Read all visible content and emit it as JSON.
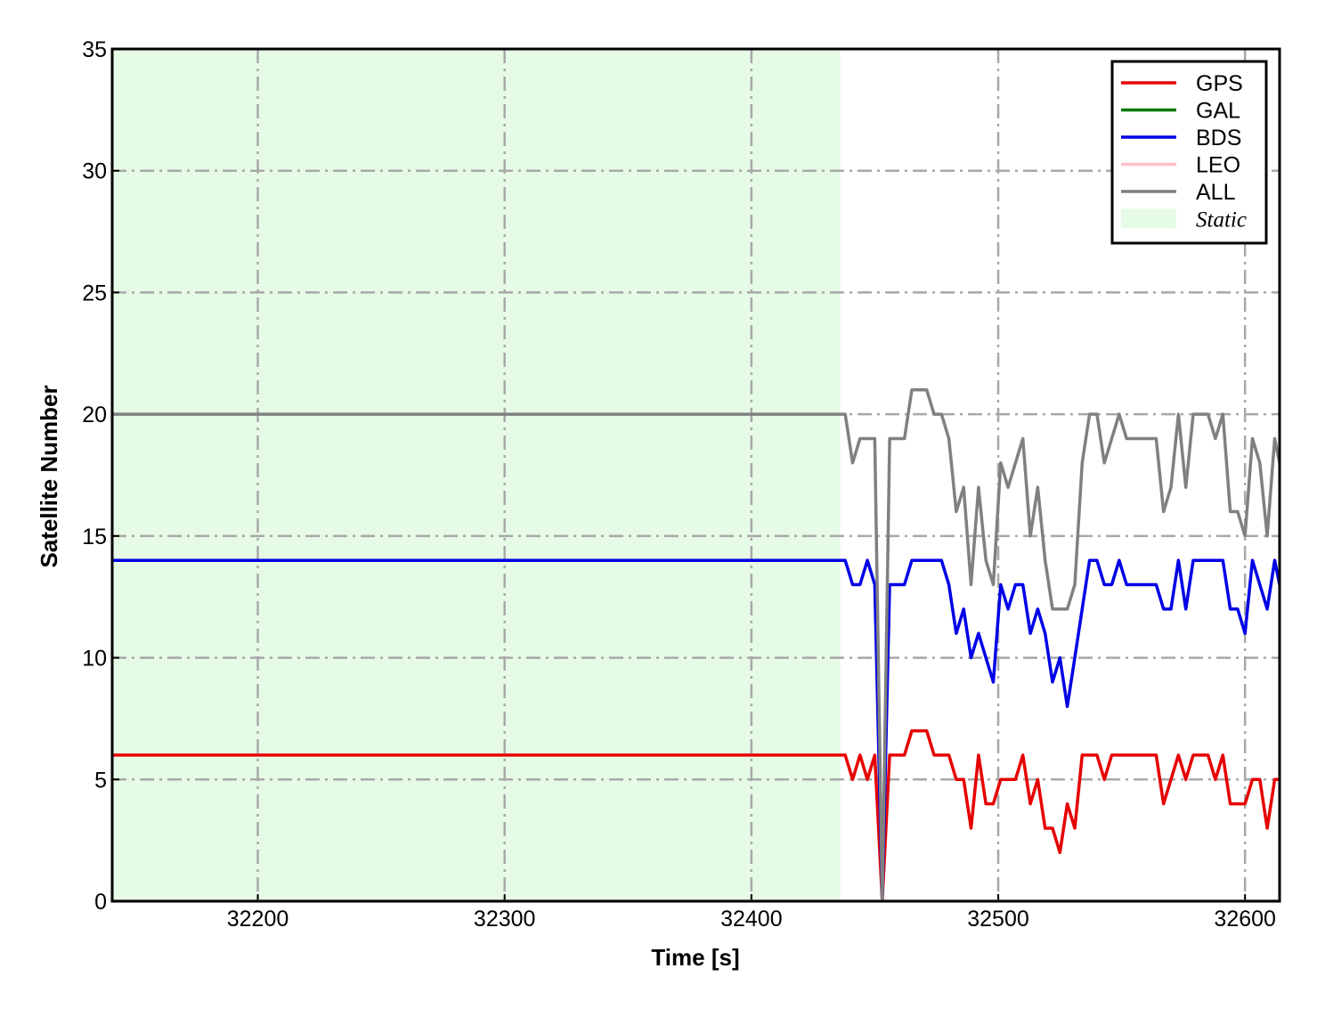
{
  "chart_data": {
    "type": "line",
    "x_label": "Time [s]",
    "y_label": "Satellite Number",
    "xlim": [
      32141,
      32614
    ],
    "ylim": [
      0,
      35
    ],
    "xticks": [
      32200,
      32300,
      32400,
      32500,
      32600
    ],
    "yticks": [
      0,
      5,
      10,
      15,
      20,
      25,
      30,
      35
    ],
    "grid": true,
    "legend_position": "upper right",
    "span": {
      "label": "Static",
      "range": [
        32141,
        32436
      ],
      "color": "#e6fbe6"
    },
    "x": [
      32141,
      32438,
      32441,
      32444,
      32447,
      32450,
      32453,
      32456,
      32459,
      32462,
      32465,
      32468,
      32471,
      32474,
      32477,
      32480,
      32483,
      32486,
      32489,
      32492,
      32495,
      32498,
      32501,
      32504,
      32507,
      32510,
      32513,
      32516,
      32519,
      32522,
      32525,
      32528,
      32531,
      32534,
      32537,
      32540,
      32543,
      32546,
      32549,
      32552,
      32555,
      32558,
      32561,
      32564,
      32567,
      32570,
      32573,
      32576,
      32579,
      32582,
      32585,
      32588,
      32591,
      32594,
      32597,
      32600,
      32603,
      32606,
      32609,
      32612,
      32614
    ],
    "series": [
      {
        "name": "GPS",
        "color": "#e60000",
        "values": [
          6,
          6,
          5,
          6,
          5,
          6,
          0,
          6,
          6,
          6,
          7,
          7,
          7,
          6,
          6,
          6,
          5,
          5,
          3,
          6,
          4,
          4,
          5,
          5,
          5,
          6,
          4,
          5,
          3,
          3,
          2,
          4,
          3,
          6,
          6,
          6,
          5,
          6,
          6,
          6,
          6,
          6,
          6,
          6,
          4,
          5,
          6,
          5,
          6,
          6,
          6,
          5,
          6,
          4,
          4,
          4,
          5,
          5,
          3,
          5,
          5
        ]
      },
      {
        "name": "GAL",
        "color": "#007a00",
        "values": [
          0,
          0,
          0,
          0,
          0,
          0,
          0,
          0,
          0,
          0,
          0,
          0,
          0,
          0,
          0,
          0,
          0,
          0,
          0,
          0,
          0,
          0,
          0,
          0,
          0,
          0,
          0,
          0,
          0,
          0,
          0,
          0,
          0,
          0,
          0,
          0,
          0,
          0,
          0,
          0,
          0,
          0,
          0,
          0,
          0,
          0,
          0,
          0,
          0,
          0,
          0,
          0,
          0,
          0,
          0,
          0,
          0,
          0,
          0,
          0,
          0
        ]
      },
      {
        "name": "BDS",
        "color": "#0000e6",
        "values": [
          14,
          14,
          13,
          13,
          14,
          13,
          0,
          13,
          13,
          13,
          14,
          14,
          14,
          14,
          14,
          13,
          11,
          12,
          10,
          11,
          10,
          9,
          13,
          12,
          13,
          13,
          11,
          12,
          11,
          9,
          10,
          8,
          10,
          12,
          14,
          14,
          13,
          13,
          14,
          13,
          13,
          13,
          13,
          13,
          12,
          12,
          14,
          12,
          14,
          14,
          14,
          14,
          14,
          12,
          12,
          11,
          14,
          13,
          12,
          14,
          13
        ]
      },
      {
        "name": "LEO",
        "color": "#ffc0cb",
        "values": [
          0,
          0,
          0,
          0,
          0,
          0,
          0,
          0,
          0,
          0,
          0,
          0,
          0,
          0,
          0,
          0,
          0,
          0,
          0,
          0,
          0,
          0,
          0,
          0,
          0,
          0,
          0,
          0,
          0,
          0,
          0,
          0,
          0,
          0,
          0,
          0,
          0,
          0,
          0,
          0,
          0,
          0,
          0,
          0,
          0,
          0,
          0,
          0,
          0,
          0,
          0,
          0,
          0,
          0,
          0,
          0,
          0,
          0,
          0,
          0,
          0
        ]
      },
      {
        "name": "ALL",
        "color": "#808080",
        "values": [
          20,
          20,
          18,
          19,
          19,
          19,
          0,
          19,
          19,
          19,
          21,
          21,
          21,
          20,
          20,
          19,
          16,
          17,
          13,
          17,
          14,
          13,
          18,
          17,
          18,
          19,
          15,
          17,
          14,
          12,
          12,
          12,
          13,
          18,
          20,
          20,
          18,
          19,
          20,
          19,
          19,
          19,
          19,
          19,
          16,
          17,
          20,
          17,
          20,
          20,
          20,
          19,
          20,
          16,
          16,
          15,
          19,
          18,
          15,
          19,
          18
        ]
      }
    ]
  }
}
